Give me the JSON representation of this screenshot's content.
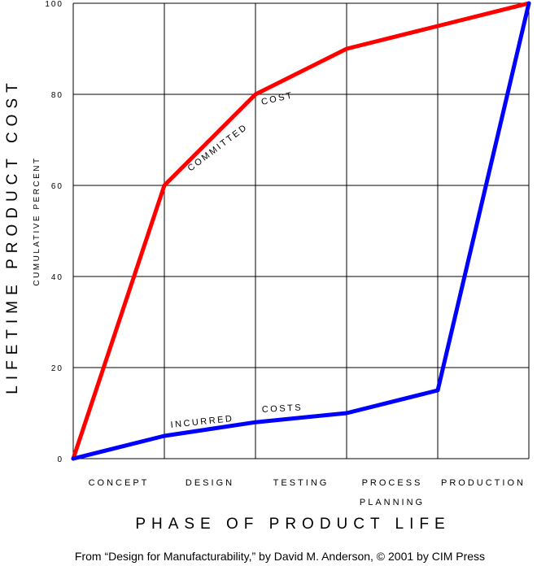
{
  "chart_data": {
    "type": "line",
    "ylabel": "LIFETIME PRODUCT COST",
    "ylabel_sub": "CUMULATIVE PERCENT",
    "xlabel": "PHASE OF PRODUCT LIFE",
    "categories": [
      {
        "lines": [
          "CONCEPT"
        ]
      },
      {
        "lines": [
          "DESIGN"
        ]
      },
      {
        "lines": [
          "TESTING"
        ]
      },
      {
        "lines": [
          "PROCESS",
          "PLANNING"
        ]
      },
      {
        "lines": [
          "PRODUCTION"
        ]
      }
    ],
    "x_boundaries": [
      0,
      1,
      2,
      3,
      4,
      5
    ],
    "ylim": [
      0,
      100
    ],
    "yticks": [
      "0",
      "20",
      "40",
      "60",
      "80",
      "100"
    ],
    "grid": true,
    "series": [
      {
        "name": "COMMITTED COST",
        "color": "#ff0000",
        "x": [
          0,
          1,
          2,
          3,
          4,
          5
        ],
        "y": [
          0,
          60,
          80,
          90,
          95,
          100
        ]
      },
      {
        "name": "INCURRED COSTS",
        "color": "#0000ff",
        "x": [
          0,
          1,
          2,
          3,
          4,
          5
        ],
        "y": [
          0,
          5,
          8,
          10,
          15,
          100
        ]
      }
    ],
    "annotations": [
      {
        "parts": [
          "COMMITTED",
          "COST"
        ]
      },
      {
        "parts": [
          "INCURRED",
          "COSTS"
        ]
      }
    ]
  },
  "footer": "From “Design for Manufacturability,” by David M. Anderson, © 2001 by CIM Press"
}
